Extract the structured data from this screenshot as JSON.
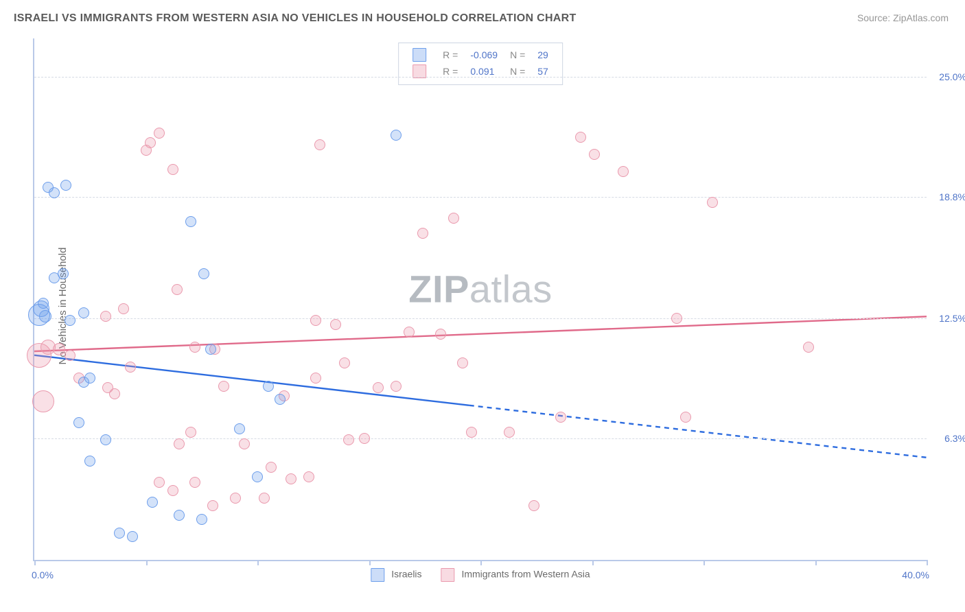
{
  "title": "ISRAELI VS IMMIGRANTS FROM WESTERN ASIA NO VEHICLES IN HOUSEHOLD CORRELATION CHART",
  "source": "Source: ZipAtlas.com",
  "ylabel": "No Vehicles in Household",
  "watermark_a": "ZIP",
  "watermark_b": "atlas",
  "chart": {
    "type": "scatter",
    "xlim": [
      0,
      40
    ],
    "ylim": [
      0,
      27
    ],
    "background_color": "#ffffff",
    "grid_color": "#d6dbe4",
    "axis_color": "#b9c9e8",
    "text_color": "#6a6a6a",
    "value_color": "#4f74c8",
    "y_gridlines": [
      6.3,
      12.5,
      18.8,
      25.0
    ],
    "y_gridline_labels": [
      "6.3%",
      "12.5%",
      "18.8%",
      "25.0%"
    ],
    "x_ticks": [
      0,
      5,
      10,
      15,
      20,
      25,
      30,
      35,
      40
    ],
    "xlab_left": "0.0%",
    "xlab_right": "40.0%",
    "point_base_size": 14,
    "series": {
      "blue": {
        "label": "Israelis",
        "swatch_fill": "rgba(109,158,235,0.35)",
        "swatch_stroke": "#6d9eeb",
        "R": "-0.069",
        "N": "29",
        "trend": {
          "color": "#2d6cdf",
          "width": 2.4,
          "solid": {
            "x1": 0,
            "y1": 10.6,
            "x2": 19.5,
            "y2": 8.0
          },
          "dashed": {
            "x1": 19.5,
            "y1": 8.0,
            "x2": 40,
            "y2": 5.3
          }
        },
        "points": [
          {
            "x": 0.2,
            "y": 12.7,
            "s": 30
          },
          {
            "x": 0.3,
            "y": 13.0,
            "s": 22
          },
          {
            "x": 0.6,
            "y": 19.3,
            "s": 14
          },
          {
            "x": 0.9,
            "y": 19.0,
            "s": 14
          },
          {
            "x": 1.4,
            "y": 19.4,
            "s": 14
          },
          {
            "x": 0.5,
            "y": 12.6,
            "s": 16
          },
          {
            "x": 0.4,
            "y": 13.3,
            "s": 14
          },
          {
            "x": 0.9,
            "y": 14.6,
            "s": 14
          },
          {
            "x": 1.3,
            "y": 14.8,
            "s": 14
          },
          {
            "x": 1.6,
            "y": 12.4,
            "s": 14
          },
          {
            "x": 2.2,
            "y": 12.8,
            "s": 14
          },
          {
            "x": 2.2,
            "y": 9.2,
            "s": 14
          },
          {
            "x": 2.5,
            "y": 9.4,
            "s": 14
          },
          {
            "x": 2.0,
            "y": 7.1,
            "s": 14
          },
          {
            "x": 3.2,
            "y": 6.2,
            "s": 14
          },
          {
            "x": 2.5,
            "y": 5.1,
            "s": 14
          },
          {
            "x": 3.8,
            "y": 1.4,
            "s": 14
          },
          {
            "x": 4.4,
            "y": 1.2,
            "s": 14
          },
          {
            "x": 5.3,
            "y": 3.0,
            "s": 14
          },
          {
            "x": 6.5,
            "y": 2.3,
            "s": 14
          },
          {
            "x": 7.5,
            "y": 2.1,
            "s": 14
          },
          {
            "x": 7.0,
            "y": 17.5,
            "s": 14
          },
          {
            "x": 7.6,
            "y": 14.8,
            "s": 14
          },
          {
            "x": 7.9,
            "y": 10.9,
            "s": 14
          },
          {
            "x": 9.2,
            "y": 6.8,
            "s": 14
          },
          {
            "x": 10.5,
            "y": 9.0,
            "s": 14
          },
          {
            "x": 11.0,
            "y": 8.3,
            "s": 14
          },
          {
            "x": 16.2,
            "y": 22.0,
            "s": 14
          },
          {
            "x": 10.0,
            "y": 4.3,
            "s": 14
          }
        ]
      },
      "pink": {
        "label": "Immigrants from Western Asia",
        "swatch_fill": "rgba(234,153,173,0.35)",
        "swatch_stroke": "#ea99ad",
        "R": "0.091",
        "N": "57",
        "trend": {
          "color": "#e06a8a",
          "width": 2.4,
          "solid": {
            "x1": 0,
            "y1": 10.8,
            "x2": 40,
            "y2": 12.6
          },
          "dashed": null
        },
        "points": [
          {
            "x": 0.2,
            "y": 10.6,
            "s": 34
          },
          {
            "x": 0.4,
            "y": 8.2,
            "s": 30
          },
          {
            "x": 0.6,
            "y": 11.0,
            "s": 20
          },
          {
            "x": 1.1,
            "y": 10.9,
            "s": 16
          },
          {
            "x": 1.6,
            "y": 10.6,
            "s": 14
          },
          {
            "x": 2.0,
            "y": 9.4,
            "s": 14
          },
          {
            "x": 3.2,
            "y": 12.6,
            "s": 14
          },
          {
            "x": 3.3,
            "y": 8.9,
            "s": 14
          },
          {
            "x": 3.6,
            "y": 8.6,
            "s": 14
          },
          {
            "x": 4.3,
            "y": 10.0,
            "s": 14
          },
          {
            "x": 5.2,
            "y": 21.6,
            "s": 14
          },
          {
            "x": 5.0,
            "y": 21.2,
            "s": 14
          },
          {
            "x": 5.6,
            "y": 22.1,
            "s": 14
          },
          {
            "x": 6.2,
            "y": 20.2,
            "s": 14
          },
          {
            "x": 4.0,
            "y": 13.0,
            "s": 14
          },
          {
            "x": 6.4,
            "y": 14.0,
            "s": 14
          },
          {
            "x": 7.2,
            "y": 11.0,
            "s": 14
          },
          {
            "x": 8.1,
            "y": 10.9,
            "s": 14
          },
          {
            "x": 8.5,
            "y": 9.0,
            "s": 14
          },
          {
            "x": 6.5,
            "y": 6.0,
            "s": 14
          },
          {
            "x": 7.0,
            "y": 6.6,
            "s": 14
          },
          {
            "x": 5.6,
            "y": 4.0,
            "s": 14
          },
          {
            "x": 6.2,
            "y": 3.6,
            "s": 14
          },
          {
            "x": 7.2,
            "y": 4.0,
            "s": 14
          },
          {
            "x": 8.0,
            "y": 2.8,
            "s": 14
          },
          {
            "x": 9.0,
            "y": 3.2,
            "s": 14
          },
          {
            "x": 9.4,
            "y": 6.0,
            "s": 14
          },
          {
            "x": 10.3,
            "y": 3.2,
            "s": 14
          },
          {
            "x": 10.6,
            "y": 4.8,
            "s": 14
          },
          {
            "x": 11.2,
            "y": 8.5,
            "s": 14
          },
          {
            "x": 11.5,
            "y": 4.2,
            "s": 14
          },
          {
            "x": 12.3,
            "y": 4.3,
            "s": 14
          },
          {
            "x": 12.6,
            "y": 9.4,
            "s": 14
          },
          {
            "x": 12.8,
            "y": 21.5,
            "s": 14
          },
          {
            "x": 12.6,
            "y": 12.4,
            "s": 14
          },
          {
            "x": 13.5,
            "y": 12.2,
            "s": 14
          },
          {
            "x": 13.9,
            "y": 10.2,
            "s": 14
          },
          {
            "x": 14.1,
            "y": 6.2,
            "s": 14
          },
          {
            "x": 14.8,
            "y": 6.3,
            "s": 14
          },
          {
            "x": 15.4,
            "y": 8.9,
            "s": 14
          },
          {
            "x": 16.2,
            "y": 9.0,
            "s": 14
          },
          {
            "x": 16.8,
            "y": 11.8,
            "s": 14
          },
          {
            "x": 17.4,
            "y": 16.9,
            "s": 14
          },
          {
            "x": 18.2,
            "y": 11.7,
            "s": 14
          },
          {
            "x": 18.8,
            "y": 17.7,
            "s": 14
          },
          {
            "x": 19.2,
            "y": 10.2,
            "s": 14
          },
          {
            "x": 19.6,
            "y": 6.6,
            "s": 14
          },
          {
            "x": 21.3,
            "y": 6.6,
            "s": 14
          },
          {
            "x": 22.4,
            "y": 2.8,
            "s": 14
          },
          {
            "x": 23.6,
            "y": 7.4,
            "s": 14
          },
          {
            "x": 24.5,
            "y": 21.9,
            "s": 14
          },
          {
            "x": 25.1,
            "y": 21.0,
            "s": 14
          },
          {
            "x": 26.4,
            "y": 20.1,
            "s": 14
          },
          {
            "x": 28.8,
            "y": 12.5,
            "s": 14
          },
          {
            "x": 30.4,
            "y": 18.5,
            "s": 14
          },
          {
            "x": 34.7,
            "y": 11.0,
            "s": 14
          },
          {
            "x": 29.2,
            "y": 7.4,
            "s": 14
          }
        ]
      }
    },
    "top_legend": {
      "R_label": "R =",
      "N_label": "N ="
    }
  }
}
